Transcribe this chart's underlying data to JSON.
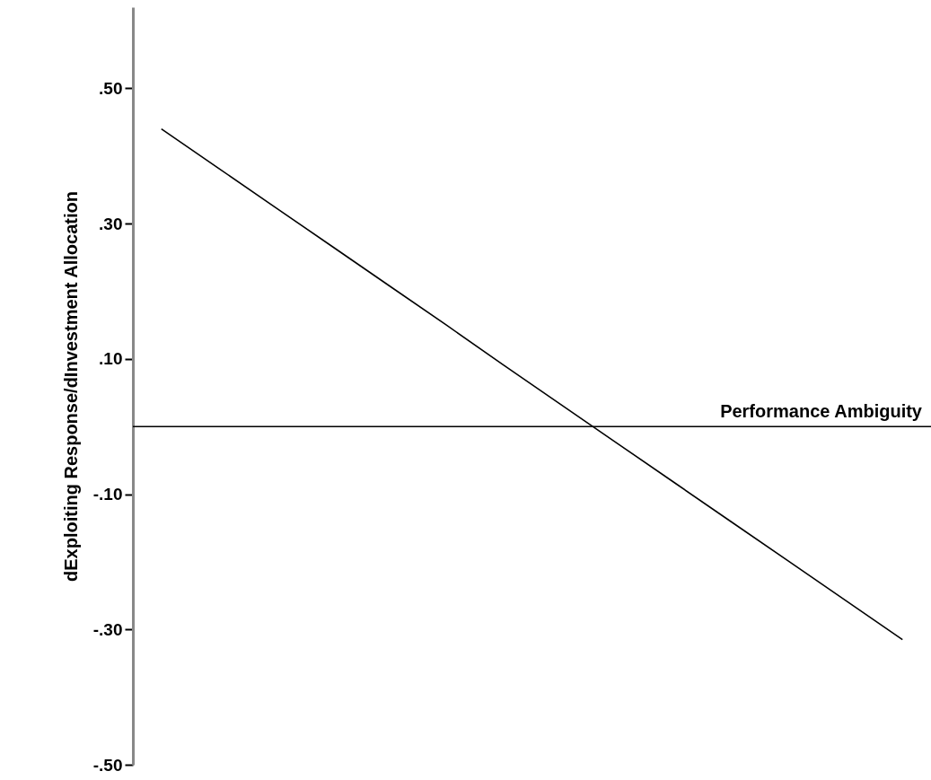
{
  "chart_data": {
    "type": "line",
    "ylabel": "dExploiting Response/dInvestment Allocation",
    "categories": [
      null,
      null,
      null,
      null,
      null,
      null,
      null,
      null,
      null,
      null,
      null,
      null,
      null,
      null
    ],
    "series": [
      {
        "color": "#000000",
        "values": [
          0.44,
          0.382,
          0.324,
          0.266,
          0.208,
          0.15,
          0.091,
          0.033,
          -0.025,
          -0.083,
          -0.141,
          -0.199,
          -0.257,
          -0.315
        ]
      }
    ],
    "ylim": [
      -0.5,
      0.62
    ],
    "yticks": [
      {
        "value": 0.5,
        "label": ".50"
      },
      {
        "value": 0.3,
        "label": ".30"
      },
      {
        "value": 0.1,
        "label": ".10"
      },
      {
        "value": -0.1,
        "label": "-.10"
      },
      {
        "value": -0.3,
        "label": "-.30"
      },
      {
        "value": -0.5,
        "label": "-.50"
      }
    ],
    "ref_lines": [
      {
        "axis": "y",
        "value": 0,
        "label": "Performance Ambiguity",
        "color": "#000000"
      }
    ],
    "tick_labels": "y",
    "grid": false,
    "marker": "none",
    "line_style": "solid"
  }
}
